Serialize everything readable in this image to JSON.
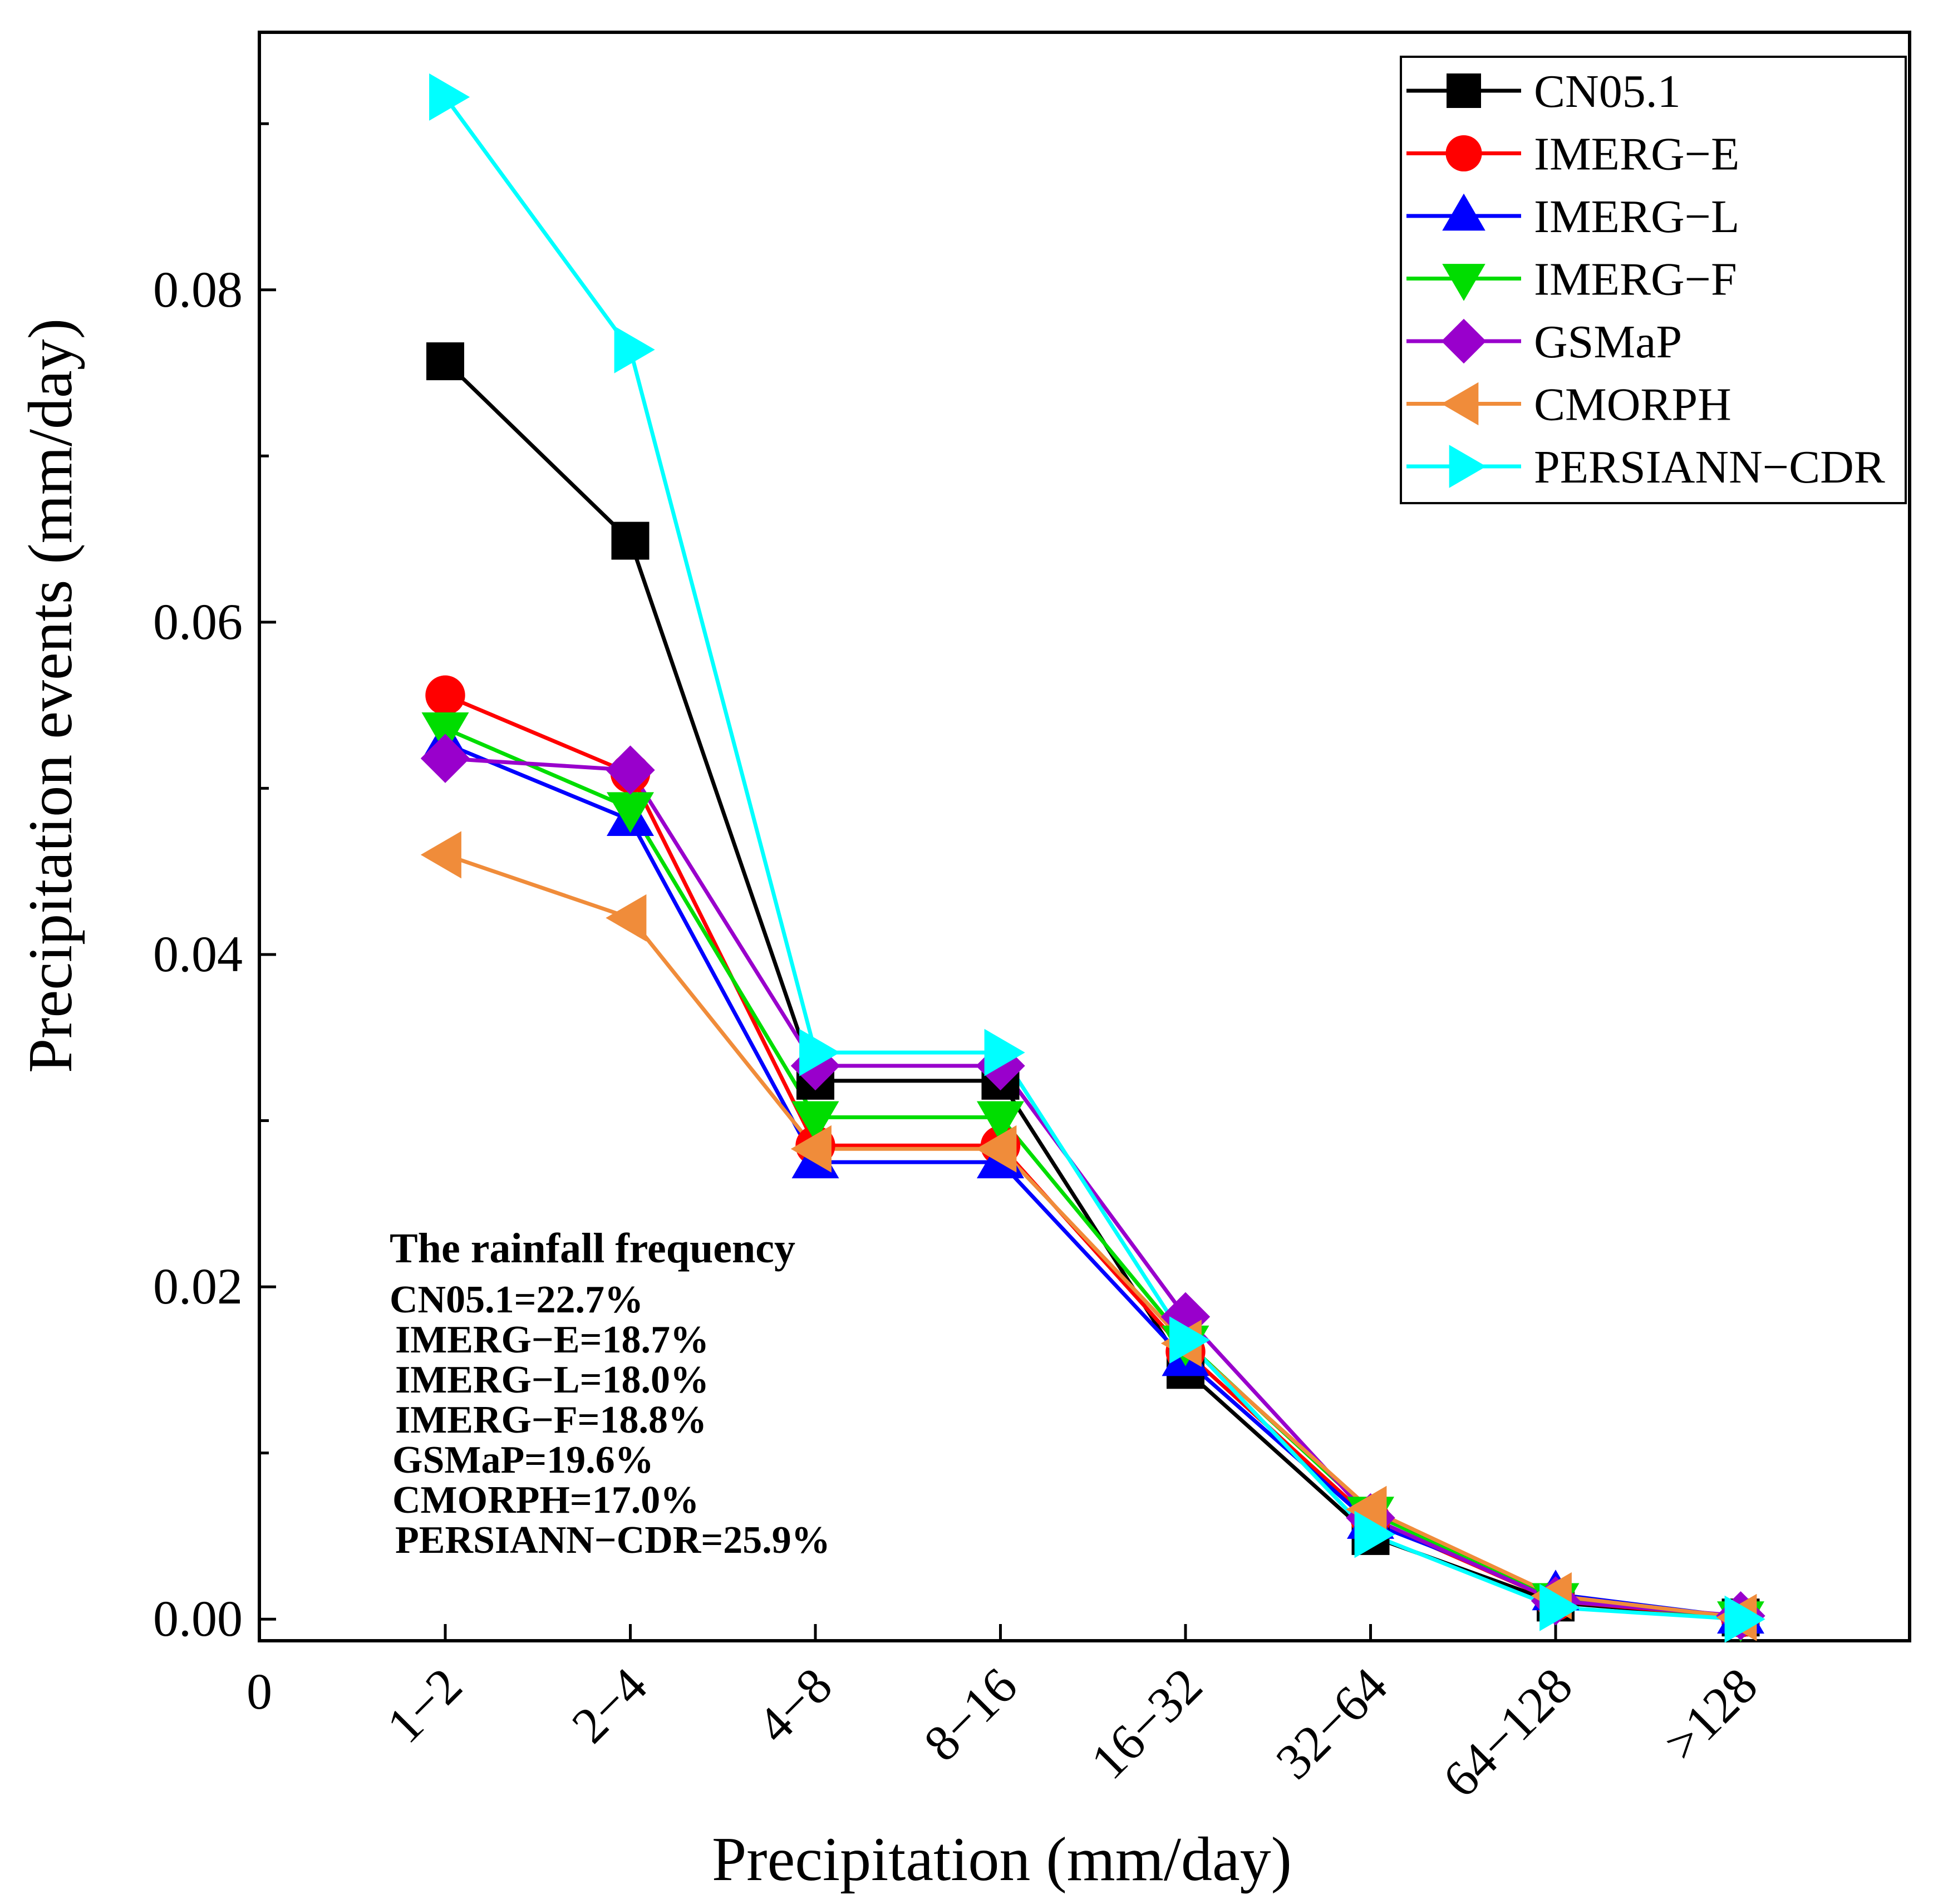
{
  "chart_data": {
    "type": "line",
    "title": "",
    "xlabel": "Precipitation (mm/day)",
    "ylabel": "Precipitation events (mm/day)",
    "x_origin_label": "0",
    "categories": [
      "1−2",
      "2−4",
      "4−8",
      "8−16",
      "16−32",
      "32−64",
      "64−128",
      ">128"
    ],
    "ylim": [
      -0.0013,
      0.0955
    ],
    "yticks": [
      0.0,
      0.02,
      0.04,
      0.06,
      0.08
    ],
    "ytick_labels": [
      "0.00",
      "0.02",
      "0.04",
      "0.06",
      "0.08"
    ],
    "y_minor_ticks": [
      0.01,
      0.03,
      0.05,
      0.07,
      0.09
    ],
    "legend_position": "top-right",
    "series": [
      {
        "name": "CN05.1",
        "color": "#000000",
        "marker": "square",
        "values": [
          0.0757,
          0.0649,
          0.0324,
          0.0324,
          0.015,
          0.005,
          0.001,
          0.0001
        ]
      },
      {
        "name": "IMERG−E",
        "color": "#ff0000",
        "marker": "circle",
        "values": [
          0.0556,
          0.0509,
          0.0285,
          0.0285,
          0.0161,
          0.006,
          0.0011,
          0.0001
        ]
      },
      {
        "name": "IMERG−L",
        "color": "#0000ff",
        "marker": "triangle-up",
        "values": [
          0.0527,
          0.0481,
          0.0275,
          0.0275,
          0.0156,
          0.0058,
          0.0015,
          0.0001
        ]
      },
      {
        "name": "IMERG−F",
        "color": "#00dd00",
        "marker": "triangle-down",
        "values": [
          0.0536,
          0.0488,
          0.0302,
          0.0302,
          0.0167,
          0.0064,
          0.0012,
          0.0001
        ]
      },
      {
        "name": "GSMaP",
        "color": "#9900cc",
        "marker": "diamond",
        "values": [
          0.0518,
          0.0511,
          0.0333,
          0.0333,
          0.0182,
          0.0061,
          0.0011,
          0.0002
        ]
      },
      {
        "name": "CMORPH",
        "color": "#f08c3a",
        "marker": "triangle-left",
        "values": [
          0.046,
          0.0422,
          0.0283,
          0.0283,
          0.0166,
          0.0066,
          0.0014,
          0.0001
        ]
      },
      {
        "name": "PERSIANN−CDR",
        "color": "#00ffff",
        "marker": "triangle-right",
        "values": [
          0.0916,
          0.0764,
          0.0341,
          0.0341,
          0.0168,
          0.0051,
          0.0007,
          0.0
        ]
      }
    ],
    "annotation": {
      "title": "The rainfall frequency",
      "lines": [
        "CN05.1=22.7%",
        "IMERG−E=18.7%",
        "IMERG−L=18.0%",
        "IMERG−F=18.8%",
        "GSMaP=19.6%",
        "CMORPH=17.0%",
        "PERSIANN−CDR=25.9%"
      ]
    }
  }
}
